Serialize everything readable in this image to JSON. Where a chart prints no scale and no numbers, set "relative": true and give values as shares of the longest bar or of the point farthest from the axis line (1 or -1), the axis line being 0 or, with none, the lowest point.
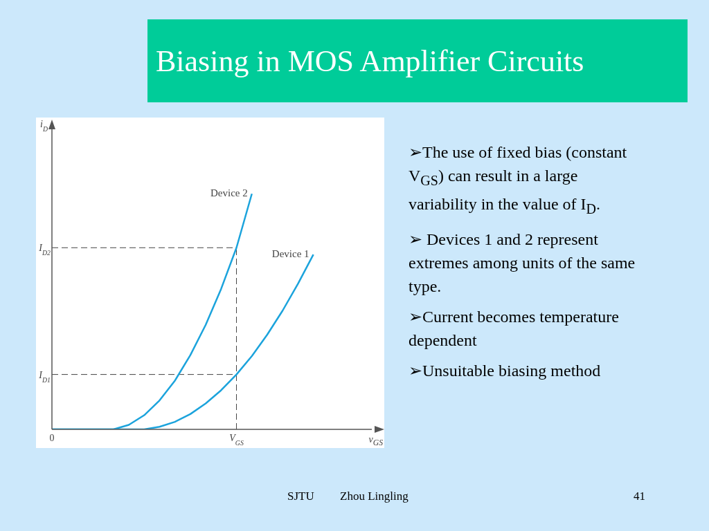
{
  "chart_data": {
    "type": "line",
    "title": "Biasing in MOS Amplifier Circuits",
    "relative": true,
    "xlabel": "v$_{GS}$",
    "categories": [
      "0",
      null,
      null,
      null,
      null,
      null,
      null,
      null,
      null,
      null,
      null,
      null,
      "V$_{GS}$",
      null,
      null,
      null,
      null,
      null,
      null,
      null,
      null
    ],
    "series": [
      {
        "name": "Device 2",
        "color": "#1ba3dc",
        "values": [
          0,
          0,
          0,
          0,
          0,
          0.019,
          0.06,
          0.123,
          0.207,
          0.315,
          0.444,
          0.596,
          0.771,
          1,
          null,
          null,
          null,
          null,
          null,
          null,
          null
        ]
      },
      {
        "name": "Device 1",
        "color": "#1ba3dc",
        "values": [
          0,
          0,
          0,
          0,
          0,
          0,
          0,
          0.011,
          0.032,
          0.065,
          0.11,
          0.166,
          0.233,
          0.311,
          0.402,
          0.504,
          0.618,
          0.742,
          null,
          null,
          null
        ]
      }
    ],
    "ref_lines": [
      {
        "axis": "y",
        "value": 0.771,
        "label": "I$_{D2}$",
        "color": "#444444",
        "line_style": "dashed"
      },
      {
        "axis": "y",
        "value": 0.233,
        "label": "I$_{D1}$",
        "color": "#444444",
        "line_style": "dashed"
      },
      {
        "axis": "x",
        "value": "V$_{GS}$",
        "color": "#444444",
        "line_style": "dashed"
      }
    ],
    "marker": "none",
    "grid": false,
    "legend": false,
    "annotations": [
      "➢The use of fixed bias (constant V$_{GS}$) can result in a large variability in the value of I$_{D}$.",
      "➢ Devices 1 and 2 represent extremes among units of the same type.",
      "➢Current becomes temperature dependent",
      "➢Unsuitable biasing method",
      "SJTU",
      "Zhou Lingling",
      "41",
      "i$_{D}$"
    ]
  }
}
